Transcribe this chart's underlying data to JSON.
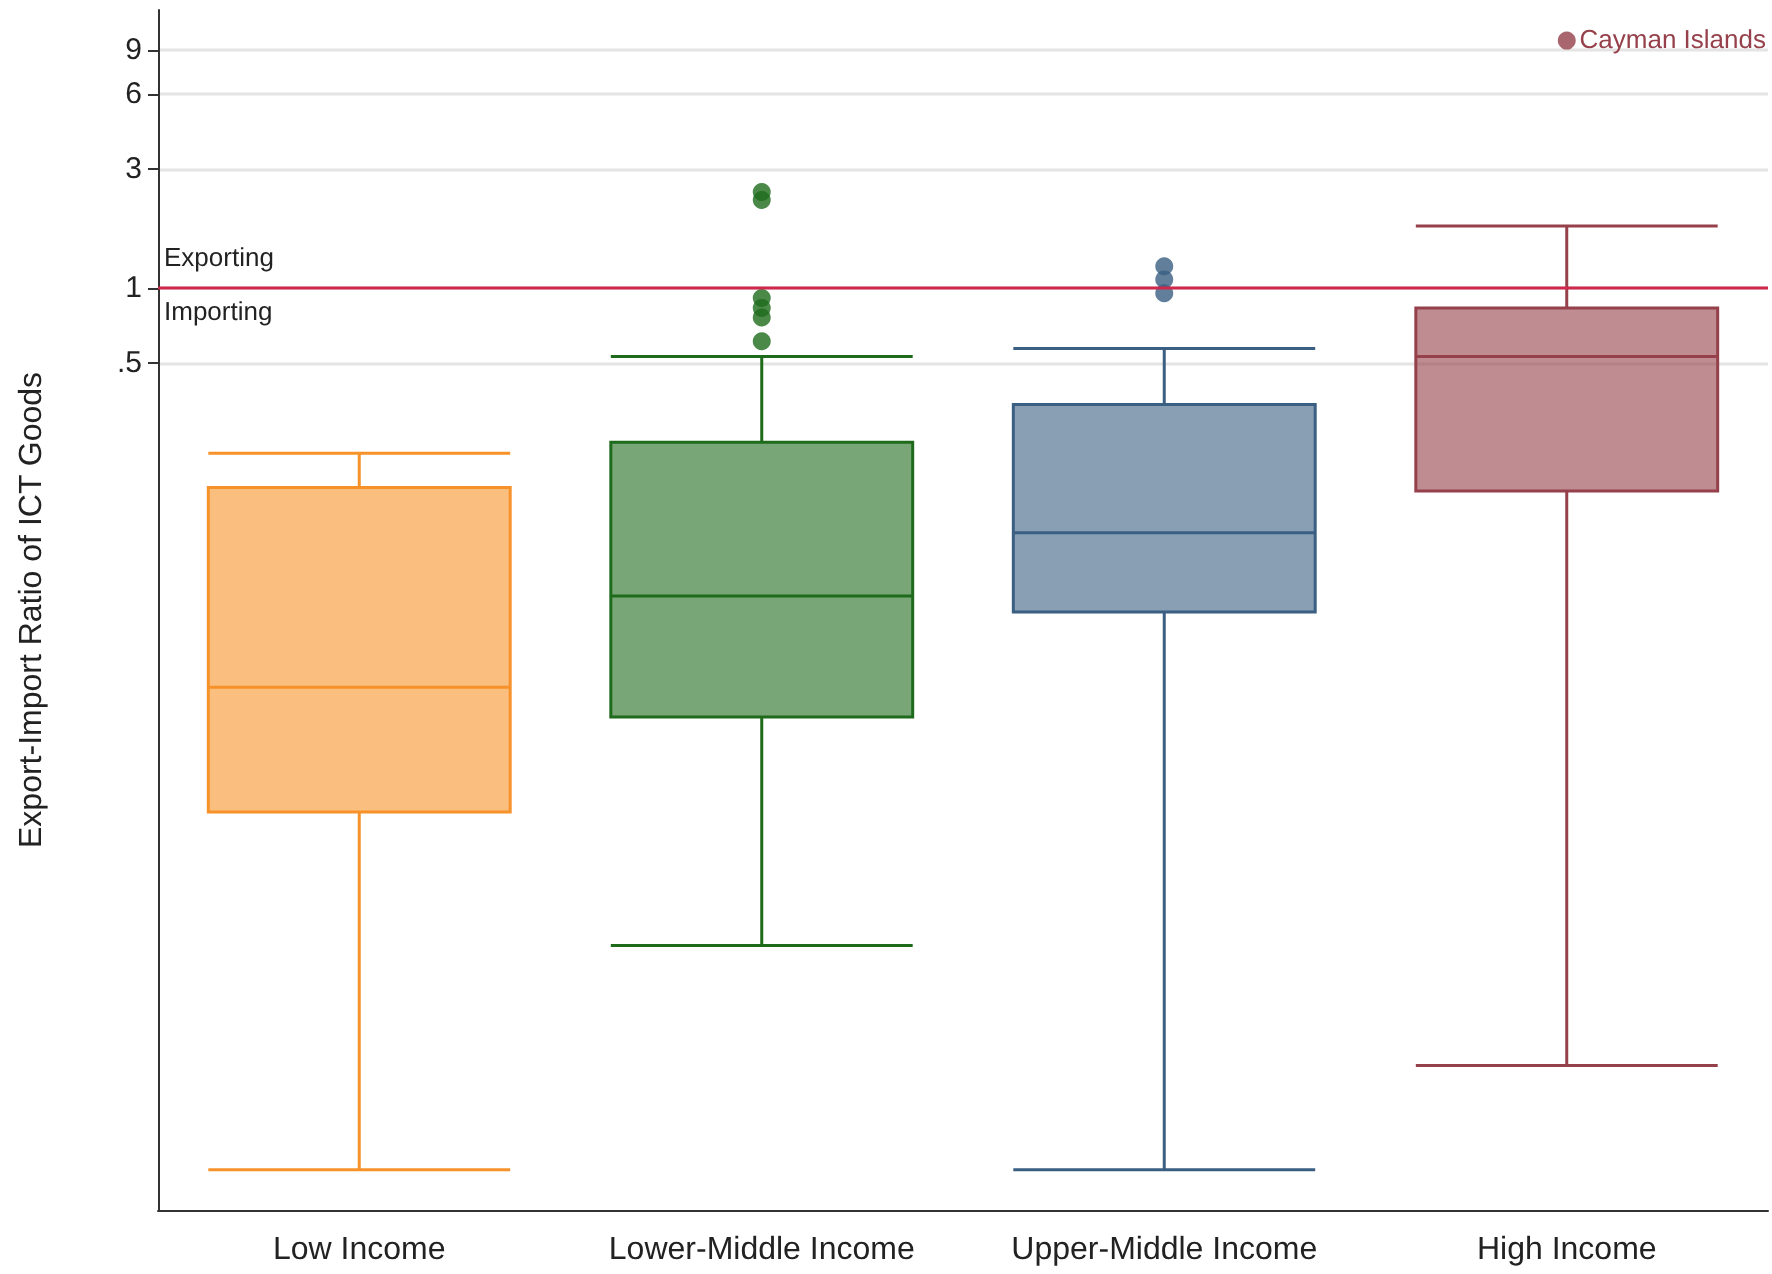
{
  "chart_data": {
    "type": "box",
    "ylabel": "Export-Import Ratio of ICT Goods",
    "categories": [
      "Low Income",
      "Lower-Middle Income",
      "Upper-Middle Income",
      "High Income"
    ],
    "colors": [
      "#f7922a",
      "#1e6b1c",
      "#3a5f82",
      "#95404a"
    ],
    "boxes": [
      {
        "low": 0.00029,
        "q1": 0.0079,
        "median": 0.025,
        "q3": 0.158,
        "high": 0.217
      },
      {
        "low": 0.0023,
        "q1": 0.019,
        "median": 0.058,
        "q3": 0.24,
        "high": 0.53,
        "outliers": [
          0.61,
          0.76,
          0.83,
          0.91,
          2.25,
          2.42
        ]
      },
      {
        "low": 0.00029,
        "q1": 0.05,
        "median": 0.104,
        "q3": 0.34,
        "high": 0.57,
        "outliers": [
          0.95,
          1.08,
          1.22
        ]
      },
      {
        "low": 0.00076,
        "q1": 0.153,
        "median": 0.53,
        "q3": 0.83,
        "high": 1.77,
        "outliers": [
          9.8
        ]
      }
    ],
    "log": "y",
    "ylim": [
      0.0002,
      13
    ],
    "yticks": [
      {
        "value": 0.5,
        "label": ".5"
      },
      1,
      3,
      6,
      9
    ],
    "grid": "y",
    "ref_lines": [
      {
        "axis": "y",
        "value": 1,
        "color": "#d0284c"
      }
    ],
    "annotations": [
      "Cayman Islands",
      {
        "text": "Exporting",
        "y": 1
      },
      {
        "text": "Importing",
        "y": 1
      }
    ]
  }
}
